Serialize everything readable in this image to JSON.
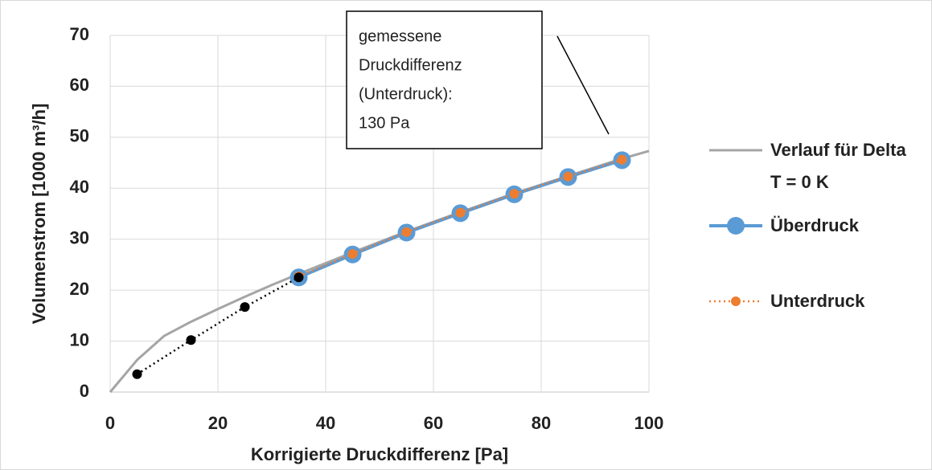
{
  "chart_data": {
    "type": "line",
    "xlabel": "Korrigierte Druckdifferenz [Pa]",
    "ylabel": "Volumenstrom [1000 m³/h]",
    "xlim": [
      0,
      100
    ],
    "xticks": [
      0,
      20,
      40,
      60,
      80,
      100
    ],
    "ylim": [
      0,
      70
    ],
    "yticks": [
      0,
      10,
      20,
      30,
      40,
      50,
      60,
      70
    ],
    "grid": true,
    "legend": "right",
    "series": [
      {
        "name": "Verlauf für Delta T = 0 K",
        "color": "#a5a5a5",
        "width": 3,
        "marker": 0,
        "dash": "none",
        "x": [
          0,
          5,
          10,
          15,
          20,
          25,
          30,
          35,
          45,
          55,
          65,
          75,
          85,
          95,
          100
        ],
        "values": [
          0,
          6.3,
          11,
          13.8,
          16.3,
          18.7,
          21,
          23.2,
          27.4,
          31.5,
          35.3,
          39,
          42.4,
          45.8,
          47.3
        ]
      },
      {
        "name": "Überdruck",
        "color": "#5b9bd5",
        "width": 4,
        "marker": 11,
        "dash": "none",
        "x": [
          35,
          45,
          55,
          65,
          75,
          85,
          95
        ],
        "values": [
          22.5,
          27,
          31.3,
          35.1,
          38.8,
          42.2,
          45.5
        ]
      },
      {
        "name": "Unterdruck",
        "color": "#ed7d31",
        "width": 2.5,
        "marker": 6,
        "dash": "2 4",
        "x": [
          35,
          45,
          55,
          65,
          75,
          85,
          95
        ],
        "values": [
          22.7,
          27.1,
          31.4,
          35.2,
          38.9,
          42.3,
          45.6
        ]
      },
      {
        "color": "#000000",
        "width": 2.5,
        "marker": 6,
        "dash": "2 4",
        "x": [
          5,
          15,
          25,
          35
        ],
        "values": [
          3.5,
          10.2,
          16.7,
          22.5
        ]
      }
    ],
    "annotation": {
      "lines": [
        "gemessene",
        "Druckdifferenz",
        "(Unterdruck):",
        "130 Pa"
      ]
    }
  }
}
